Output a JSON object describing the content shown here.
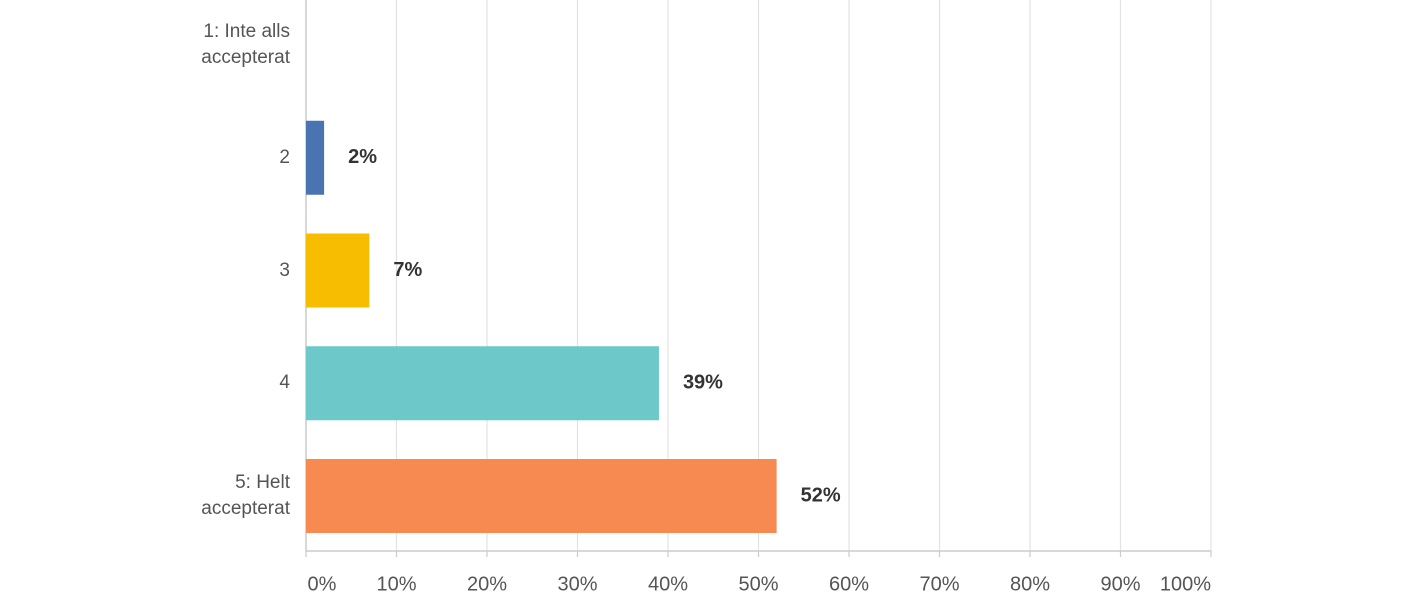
{
  "chart_data": {
    "type": "bar",
    "orientation": "horizontal",
    "categories": [
      "1: Inte alls\naccepterat",
      "2",
      "3",
      "4",
      "5: Helt\naccepterat"
    ],
    "values": [
      0,
      2,
      7,
      39,
      52
    ],
    "value_labels": [
      null,
      "2%",
      "7%",
      "39%",
      "52%"
    ],
    "colors": [
      null,
      "#4a73b1",
      "#f7bd00",
      "#6cc8c9",
      "#f68a50"
    ],
    "xlim": [
      0,
      100
    ],
    "xticks": [
      {
        "value": 0,
        "label": "0%"
      },
      {
        "value": 10,
        "label": "10%"
      },
      {
        "value": 20,
        "label": "20%"
      },
      {
        "value": 30,
        "label": "30%"
      },
      {
        "value": 40,
        "label": "40%"
      },
      {
        "value": 50,
        "label": "50%"
      },
      {
        "value": 60,
        "label": "60%"
      },
      {
        "value": 70,
        "label": "70%"
      },
      {
        "value": 80,
        "label": "80%"
      },
      {
        "value": 90,
        "label": "90%"
      },
      {
        "value": 100,
        "label": "100%"
      }
    ],
    "grid": true
  }
}
